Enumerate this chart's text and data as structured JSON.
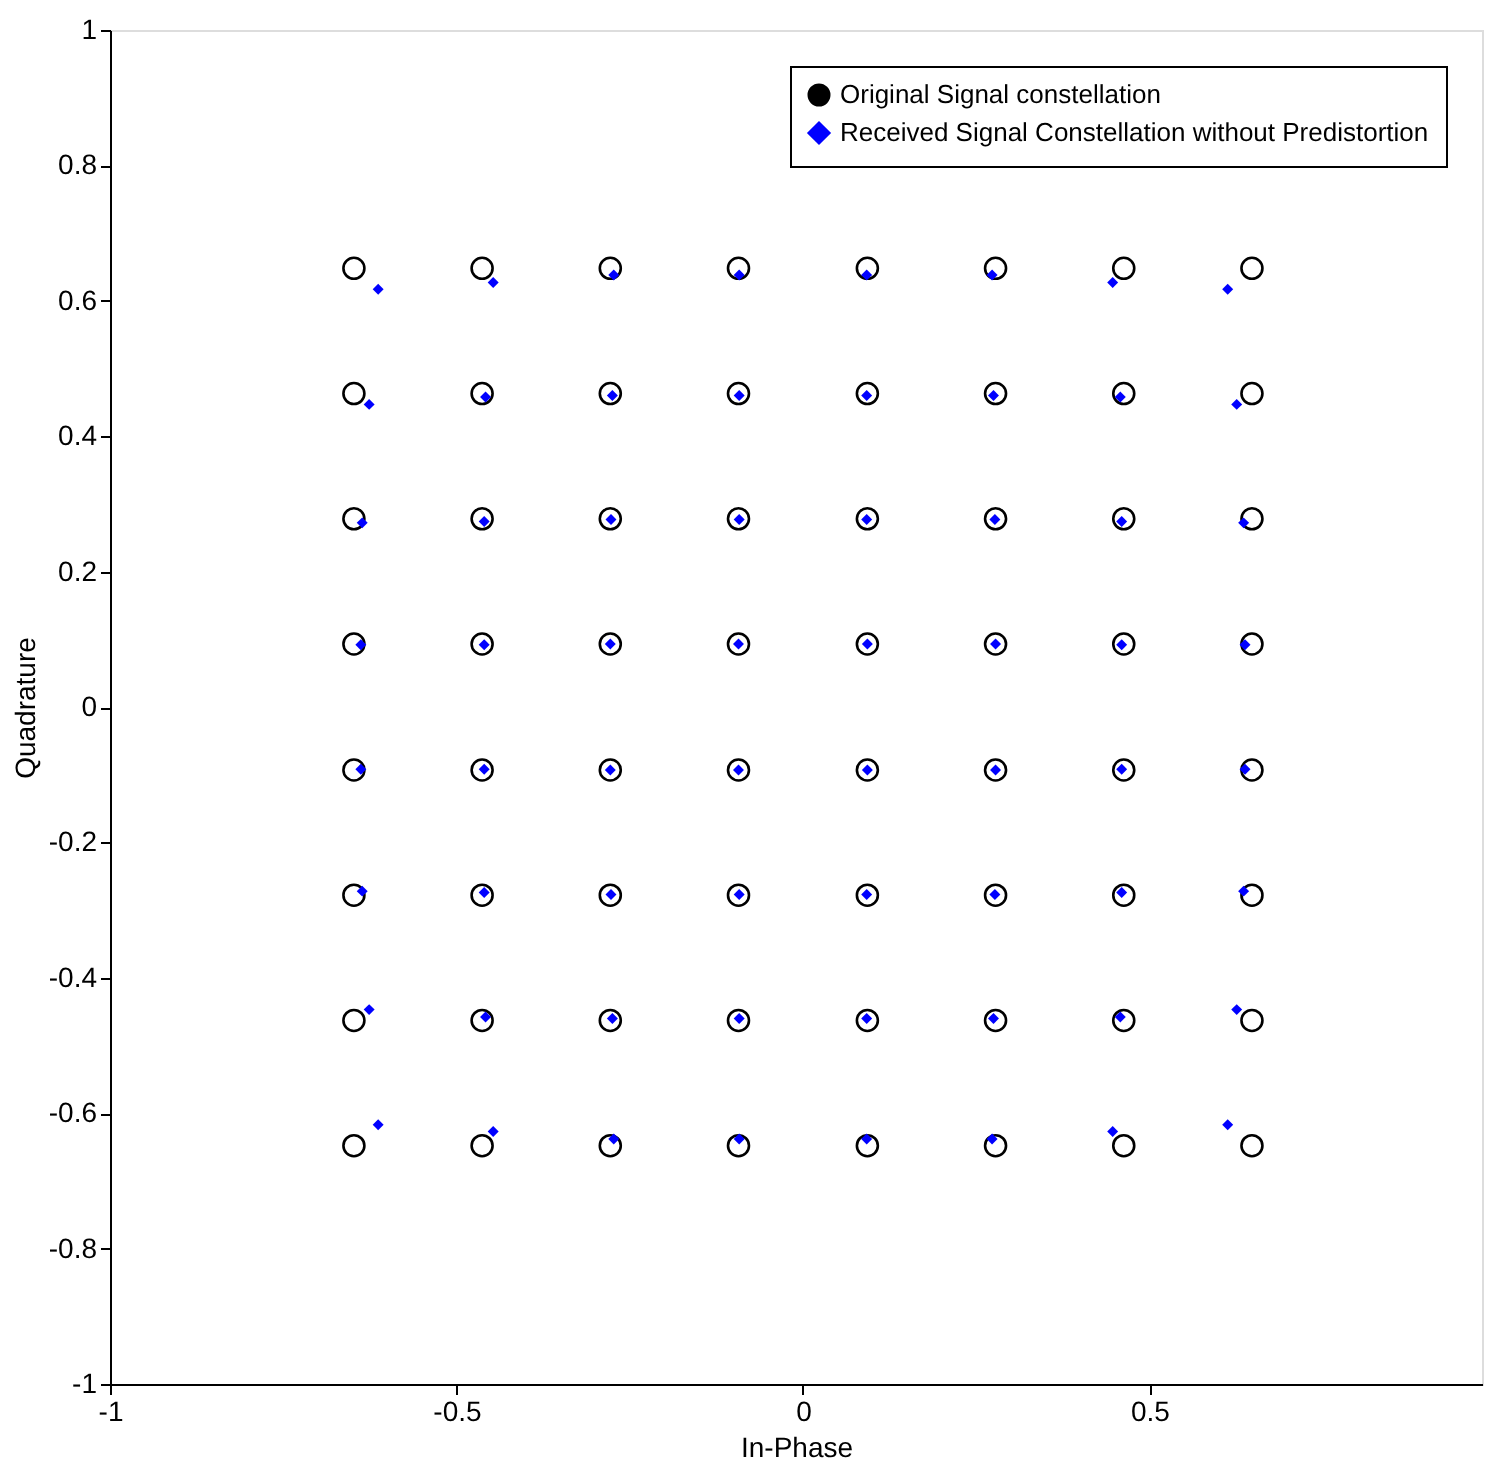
{
  "chart_data": {
    "type": "scatter",
    "xlabel": "In-Phase",
    "ylabel": "Quadrature",
    "xlim": [
      -1,
      0.98
    ],
    "ylim": [
      -1,
      1
    ],
    "xticks": [
      -1,
      -0.5,
      0,
      0.5
    ],
    "yticks": [
      -1,
      -0.8,
      -0.6,
      -0.4,
      -0.2,
      0,
      0.2,
      0.4,
      0.6,
      0.8,
      1
    ],
    "grid": false,
    "legend": "top right",
    "series": [
      {
        "name": "Original Signal constellation",
        "color": "#000000",
        "marker": "circle",
        "x": [
          -0.648,
          -0.463,
          -0.278,
          -0.093,
          0.093,
          0.278,
          0.463,
          0.648,
          -0.648,
          -0.463,
          -0.278,
          -0.093,
          0.093,
          0.278,
          0.463,
          0.648,
          -0.648,
          -0.463,
          -0.278,
          -0.093,
          0.093,
          0.278,
          0.463,
          0.648,
          -0.648,
          -0.463,
          -0.278,
          -0.093,
          0.093,
          0.278,
          0.463,
          0.648,
          -0.648,
          -0.463,
          -0.278,
          -0.093,
          0.093,
          0.278,
          0.463,
          0.648,
          -0.648,
          -0.463,
          -0.278,
          -0.093,
          0.093,
          0.278,
          0.463,
          0.648,
          -0.648,
          -0.463,
          -0.278,
          -0.093,
          0.093,
          0.278,
          0.463,
          0.648,
          -0.648,
          -0.463,
          -0.278,
          -0.093,
          0.093,
          0.278,
          0.463,
          0.648
        ],
        "values": [
          0.648,
          0.648,
          0.648,
          0.648,
          0.648,
          0.648,
          0.648,
          0.648,
          0.463,
          0.463,
          0.463,
          0.463,
          0.463,
          0.463,
          0.463,
          0.463,
          0.278,
          0.278,
          0.278,
          0.278,
          0.278,
          0.278,
          0.278,
          0.278,
          0.093,
          0.093,
          0.093,
          0.093,
          0.093,
          0.093,
          0.093,
          0.093,
          -0.093,
          -0.093,
          -0.093,
          -0.093,
          -0.093,
          -0.093,
          -0.093,
          -0.093,
          -0.278,
          -0.278,
          -0.278,
          -0.278,
          -0.278,
          -0.278,
          -0.278,
          -0.278,
          -0.463,
          -0.463,
          -0.463,
          -0.463,
          -0.463,
          -0.463,
          -0.463,
          -0.463,
          -0.648,
          -0.648,
          -0.648,
          -0.648,
          -0.648,
          -0.648,
          -0.648,
          -0.648
        ]
      },
      {
        "name": "Received Signal Constellation without Predistortion",
        "color": "#0000ff",
        "marker": "diamond",
        "x": [
          -0.613,
          -0.447,
          -0.273,
          -0.092,
          0.092,
          0.273,
          0.447,
          0.613,
          -0.626,
          -0.458,
          -0.275,
          -0.092,
          0.092,
          0.275,
          0.458,
          0.626,
          -0.636,
          -0.46,
          -0.277,
          -0.092,
          0.092,
          0.277,
          0.46,
          0.636,
          -0.638,
          -0.46,
          -0.278,
          -0.093,
          0.093,
          0.278,
          0.46,
          0.638,
          -0.638,
          -0.46,
          -0.278,
          -0.093,
          0.093,
          0.278,
          0.46,
          0.638,
          -0.636,
          -0.46,
          -0.277,
          -0.092,
          0.092,
          0.277,
          0.46,
          0.636,
          -0.626,
          -0.458,
          -0.275,
          -0.092,
          0.092,
          0.275,
          0.458,
          0.626,
          -0.613,
          -0.447,
          -0.273,
          -0.092,
          0.092,
          0.273,
          0.447,
          0.613
        ],
        "values": [
          0.617,
          0.627,
          0.638,
          0.638,
          0.638,
          0.638,
          0.627,
          0.617,
          0.447,
          0.458,
          0.46,
          0.46,
          0.46,
          0.46,
          0.458,
          0.447,
          0.272,
          0.274,
          0.277,
          0.277,
          0.277,
          0.277,
          0.274,
          0.272,
          0.092,
          0.092,
          0.093,
          0.093,
          0.093,
          0.093,
          0.092,
          0.092,
          -0.092,
          -0.092,
          -0.093,
          -0.093,
          -0.093,
          -0.093,
          -0.092,
          -0.092,
          -0.272,
          -0.274,
          -0.277,
          -0.277,
          -0.277,
          -0.277,
          -0.274,
          -0.272,
          -0.447,
          -0.458,
          -0.46,
          -0.46,
          -0.46,
          -0.46,
          -0.458,
          -0.447,
          -0.617,
          -0.627,
          -0.638,
          -0.638,
          -0.638,
          -0.638,
          -0.627,
          -0.617
        ]
      }
    ]
  }
}
